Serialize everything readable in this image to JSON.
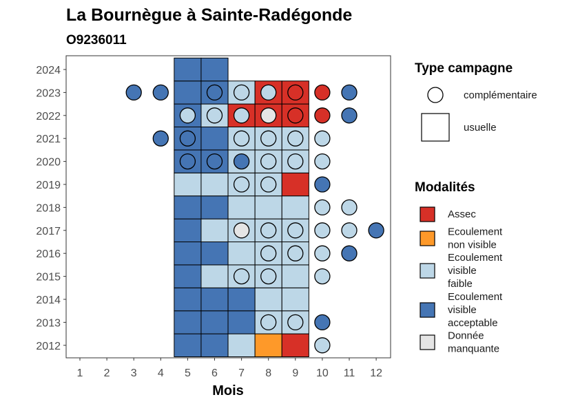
{
  "chart_data": {
    "type": "heatmap",
    "title": "La Bournègue à Sainte-Radégonde",
    "subtitle": "O9236011",
    "xlabel": "Mois",
    "ylabel": "",
    "x_ticks": [
      "1",
      "2",
      "3",
      "4",
      "5",
      "6",
      "7",
      "8",
      "9",
      "10",
      "11",
      "12"
    ],
    "y_ticks": [
      "2012",
      "2013",
      "2014",
      "2015",
      "2016",
      "2017",
      "2018",
      "2019",
      "2020",
      "2021",
      "2022",
      "2023",
      "2024"
    ],
    "colors": {
      "A": "#d73027",
      "N": "#fe9929",
      "F": "#bdd7e7",
      "E": "#4575b4",
      "M": "#e5e5e5"
    },
    "legend_type": {
      "title": "Type campagne",
      "items": [
        {
          "shape": "circle",
          "label": "complémentaire"
        },
        {
          "shape": "square",
          "label": "usuelle"
        }
      ]
    },
    "legend_modalites": {
      "title": "Modalités",
      "items": [
        {
          "code": "A",
          "lines": [
            "Assec"
          ]
        },
        {
          "code": "N",
          "lines": [
            "Ecoulement",
            "non visible"
          ]
        },
        {
          "code": "F",
          "lines": [
            "Ecoulement",
            "visible",
            "faible"
          ]
        },
        {
          "code": "E",
          "lines": [
            "Ecoulement",
            "visible",
            "acceptable"
          ]
        },
        {
          "code": "M",
          "lines": [
            "Donnée",
            "manquante"
          ]
        }
      ]
    },
    "usuelle": [
      {
        "year": 2012,
        "months": {
          "5": "E",
          "6": "E",
          "7": "F",
          "8": "N",
          "9": "A"
        }
      },
      {
        "year": 2013,
        "months": {
          "5": "E",
          "6": "E",
          "7": "E",
          "8": "F",
          "9": "F"
        }
      },
      {
        "year": 2014,
        "months": {
          "5": "E",
          "6": "E",
          "7": "E",
          "8": "F",
          "9": "F"
        }
      },
      {
        "year": 2015,
        "months": {
          "5": "E",
          "6": "F",
          "7": "F",
          "8": "F",
          "9": "F"
        }
      },
      {
        "year": 2016,
        "months": {
          "5": "E",
          "6": "E",
          "7": "F",
          "8": "F",
          "9": "F"
        }
      },
      {
        "year": 2017,
        "months": {
          "5": "E",
          "6": "F",
          "7": "F",
          "8": "F",
          "9": "F"
        }
      },
      {
        "year": 2018,
        "months": {
          "5": "E",
          "6": "E",
          "7": "F",
          "8": "F",
          "9": "F"
        }
      },
      {
        "year": 2019,
        "months": {
          "5": "F",
          "6": "F",
          "7": "F",
          "8": "F",
          "9": "A"
        }
      },
      {
        "year": 2020,
        "months": {
          "5": "E",
          "6": "E",
          "7": "F",
          "8": "F",
          "9": "F"
        }
      },
      {
        "year": 2021,
        "months": {
          "5": "E",
          "6": "E",
          "7": "F",
          "8": "F",
          "9": "F"
        }
      },
      {
        "year": 2022,
        "months": {
          "5": "E",
          "6": "F",
          "7": "A",
          "8": "A",
          "9": "A"
        }
      },
      {
        "year": 2023,
        "months": {
          "5": "E",
          "6": "E",
          "7": "F",
          "8": "A",
          "9": "A"
        }
      },
      {
        "year": 2024,
        "months": {
          "5": "E",
          "6": "E"
        }
      }
    ],
    "complementaire": [
      {
        "year": 2012,
        "month": 10,
        "v": "F"
      },
      {
        "year": 2013,
        "month": 8,
        "v": "F"
      },
      {
        "year": 2013,
        "month": 9,
        "v": "F"
      },
      {
        "year": 2013,
        "month": 10,
        "v": "E"
      },
      {
        "year": 2015,
        "month": 7,
        "v": "F"
      },
      {
        "year": 2015,
        "month": 8,
        "v": "F"
      },
      {
        "year": 2015,
        "month": 10,
        "v": "F"
      },
      {
        "year": 2016,
        "month": 8,
        "v": "F"
      },
      {
        "year": 2016,
        "month": 9,
        "v": "F"
      },
      {
        "year": 2016,
        "month": 10,
        "v": "F"
      },
      {
        "year": 2016,
        "month": 11,
        "v": "E"
      },
      {
        "year": 2017,
        "month": 7,
        "v": "M"
      },
      {
        "year": 2017,
        "month": 8,
        "v": "F"
      },
      {
        "year": 2017,
        "month": 9,
        "v": "F"
      },
      {
        "year": 2017,
        "month": 10,
        "v": "F"
      },
      {
        "year": 2017,
        "month": 11,
        "v": "F"
      },
      {
        "year": 2017,
        "month": 12,
        "v": "E"
      },
      {
        "year": 2018,
        "month": 10,
        "v": "F"
      },
      {
        "year": 2018,
        "month": 11,
        "v": "F"
      },
      {
        "year": 2019,
        "month": 7,
        "v": "F"
      },
      {
        "year": 2019,
        "month": 8,
        "v": "F"
      },
      {
        "year": 2019,
        "month": 10,
        "v": "E"
      },
      {
        "year": 2020,
        "month": 5,
        "v": "E"
      },
      {
        "year": 2020,
        "month": 6,
        "v": "E"
      },
      {
        "year": 2020,
        "month": 7,
        "v": "E"
      },
      {
        "year": 2020,
        "month": 8,
        "v": "F"
      },
      {
        "year": 2020,
        "month": 9,
        "v": "F"
      },
      {
        "year": 2020,
        "month": 10,
        "v": "F"
      },
      {
        "year": 2021,
        "month": 4,
        "v": "E"
      },
      {
        "year": 2021,
        "month": 5,
        "v": "E"
      },
      {
        "year": 2021,
        "month": 7,
        "v": "F"
      },
      {
        "year": 2021,
        "month": 8,
        "v": "F"
      },
      {
        "year": 2021,
        "month": 9,
        "v": "F"
      },
      {
        "year": 2021,
        "month": 10,
        "v": "F"
      },
      {
        "year": 2022,
        "month": 5,
        "v": "F"
      },
      {
        "year": 2022,
        "month": 6,
        "v": "F"
      },
      {
        "year": 2022,
        "month": 7,
        "v": "F"
      },
      {
        "year": 2022,
        "month": 8,
        "v": "M"
      },
      {
        "year": 2022,
        "month": 9,
        "v": "A"
      },
      {
        "year": 2022,
        "month": 10,
        "v": "A"
      },
      {
        "year": 2022,
        "month": 11,
        "v": "E"
      },
      {
        "year": 2023,
        "month": 3,
        "v": "E"
      },
      {
        "year": 2023,
        "month": 4,
        "v": "E"
      },
      {
        "year": 2023,
        "month": 6,
        "v": "E"
      },
      {
        "year": 2023,
        "month": 7,
        "v": "F"
      },
      {
        "year": 2023,
        "month": 8,
        "v": "F"
      },
      {
        "year": 2023,
        "month": 9,
        "v": "A"
      },
      {
        "year": 2023,
        "month": 10,
        "v": "A"
      },
      {
        "year": 2023,
        "month": 11,
        "v": "E"
      }
    ],
    "grid": false,
    "legend_position": "right"
  }
}
